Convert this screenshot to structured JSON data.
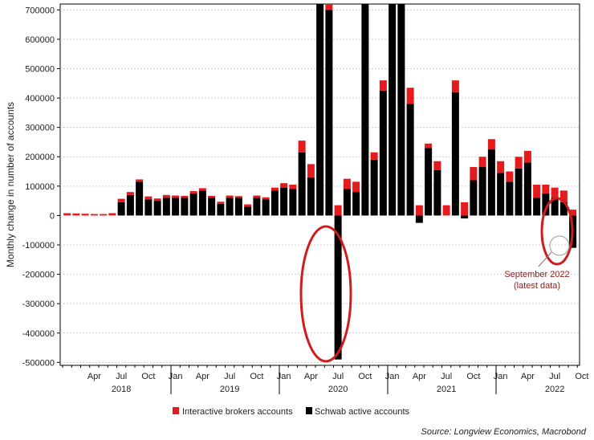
{
  "chart_data": {
    "type": "bar",
    "stacked": true,
    "ylabel": "Monthly change in number of accounts",
    "ylim": [
      -510000,
      720000
    ],
    "yticks": [
      -500000,
      -400000,
      -300000,
      -200000,
      -100000,
      0,
      100000,
      200000,
      300000,
      400000,
      500000,
      600000,
      700000
    ],
    "ytick_labels": [
      "-500000",
      "-400000",
      "-300000",
      "-200000",
      "-100000",
      "0",
      "100000",
      "200000",
      "300000",
      "400000",
      "500000",
      "600000",
      "700000"
    ],
    "x_start": "2018-01",
    "month_tick_labels": [
      "Apr",
      "Jul",
      "Oct",
      "Jan",
      "Apr",
      "Jul",
      "Oct",
      "Jan",
      "Apr",
      "Jul",
      "Oct",
      "Jan",
      "Apr",
      "Jul",
      "Oct",
      "Jan",
      "Apr",
      "Jul",
      "Oct"
    ],
    "month_tick_index": [
      3,
      6,
      9,
      12,
      15,
      18,
      21,
      24,
      27,
      30,
      33,
      36,
      39,
      42,
      45,
      48,
      51,
      54,
      57
    ],
    "year_labels": [
      "2018",
      "2019",
      "2020",
      "2021",
      "2022"
    ],
    "year_label_index": [
      6,
      18,
      30,
      42,
      54
    ],
    "series": [
      {
        "name": "Schwab active accounts",
        "color": "#000000",
        "values": [
          0,
          0,
          0,
          0,
          0,
          0,
          45000,
          70000,
          115000,
          55000,
          50000,
          60000,
          60000,
          60000,
          75000,
          85000,
          60000,
          40000,
          60000,
          60000,
          30000,
          60000,
          55000,
          85000,
          95000,
          90000,
          215000,
          130000,
          720000,
          700000,
          -490000,
          90000,
          80000,
          720000,
          190000,
          425000,
          720000,
          720000,
          380000,
          -25000,
          230000,
          155000,
          0,
          420000,
          -10000,
          120000,
          165000,
          225000,
          145000,
          115000,
          160000,
          180000,
          60000,
          75000,
          60000,
          45000,
          -110000
        ]
      },
      {
        "name": "Interactive brokers accounts",
        "color": "#e41a1c",
        "values": [
          8000,
          7000,
          6000,
          5000,
          5000,
          8000,
          12000,
          10000,
          8000,
          10000,
          8000,
          10000,
          8000,
          7000,
          8000,
          8000,
          7000,
          7000,
          8000,
          6000,
          8000,
          8000,
          7000,
          10000,
          15000,
          15000,
          40000,
          45000,
          5000,
          20000,
          35000,
          35000,
          35000,
          5000,
          25000,
          35000,
          5000,
          5000,
          55000,
          35000,
          15000,
          30000,
          35000,
          40000,
          45000,
          45000,
          35000,
          35000,
          40000,
          35000,
          40000,
          40000,
          45000,
          30000,
          35000,
          40000,
          20000
        ]
      }
    ],
    "annotation": {
      "line1": "September 2022",
      "line2": "(latest data)"
    },
    "legend": [
      "Interactive brokers accounts",
      "Schwab active accounts"
    ],
    "source": "Source: Longview Economics, Macrobond"
  }
}
